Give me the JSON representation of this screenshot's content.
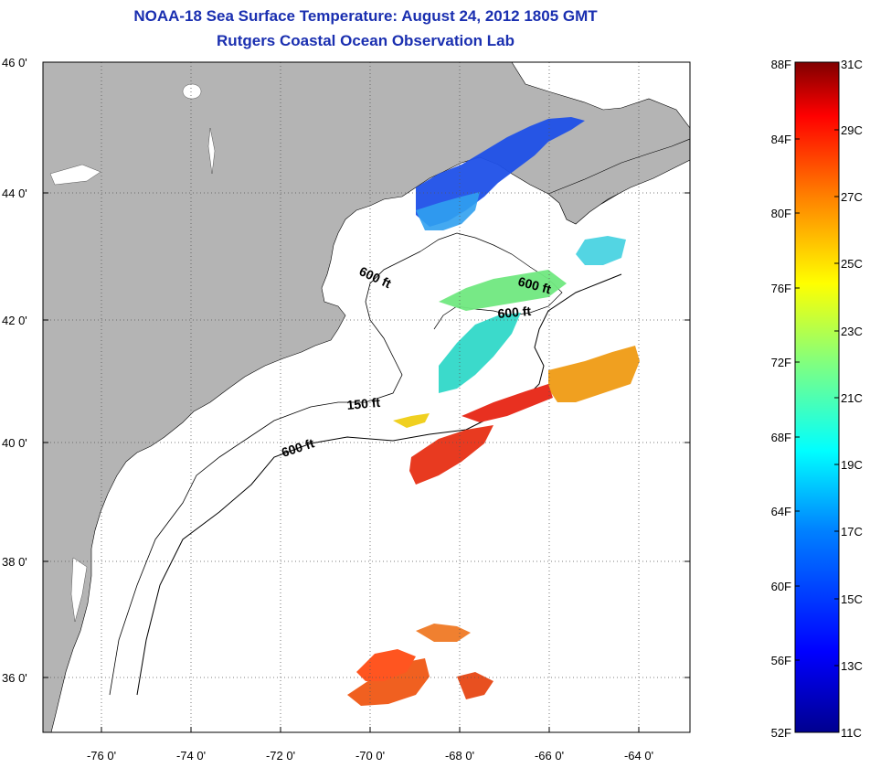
{
  "title": {
    "line1": "NOAA-18 Sea Surface Temperature:  August 24, 2012 1805 GMT",
    "line2": "Rutgers Coastal Ocean Observation Lab"
  },
  "map": {
    "lon_range": [
      -77,
      -63
    ],
    "lat_range": [
      35,
      46
    ],
    "lat_labels": [
      "46 0'",
      "44 0'",
      "42 0'",
      "40 0'",
      "38 0'",
      "36 0'"
    ],
    "lon_labels": [
      "-76 0'",
      "-74 0'",
      "-72 0'",
      "-70 0'",
      "-68 0'",
      "-66 0'",
      "-64 0'"
    ],
    "contour_labels": [
      "600 ft",
      "600 ft",
      "600 ft",
      "150 ft",
      "600 ft"
    ],
    "land_color": "#b4b4b4",
    "grid": "dotted"
  },
  "colorbar": {
    "f_labels": [
      "88F",
      "84F",
      "80F",
      "76F",
      "72F",
      "68F",
      "64F",
      "60F",
      "56F",
      "52F"
    ],
    "c_labels": [
      "31C",
      "29C",
      "27C",
      "25C",
      "23C",
      "21C",
      "19C",
      "17C",
      "15C",
      "13C",
      "11C"
    ],
    "range_c": [
      11,
      31
    ],
    "colors": [
      "#00008f",
      "#0000ff",
      "#0080ff",
      "#00ffff",
      "#80ff80",
      "#ffff00",
      "#ff8000",
      "#ff0000",
      "#800000"
    ]
  }
}
